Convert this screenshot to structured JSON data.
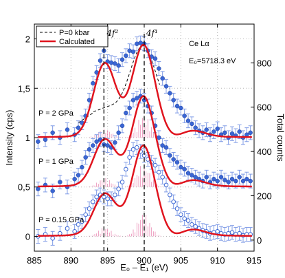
{
  "chart_data": {
    "type": "scatter",
    "xlabel": "E₀ – E₁ (eV)",
    "ylabel": "Intensity (cps)",
    "y2label": "Total counts",
    "xlim": [
      885,
      915
    ],
    "ylim": [
      -0.15,
      2.15
    ],
    "y2lim": [
      -50,
      975
    ],
    "xticks": [
      "885",
      "890",
      "895",
      "900",
      "905",
      "910",
      "915"
    ],
    "yticks": [
      "0",
      "0,5",
      "1",
      "1,5",
      "2"
    ],
    "y2ticks": [
      "0",
      "200",
      "400",
      "600",
      "800"
    ],
    "grid": true,
    "legend": {
      "position": "top-left",
      "entries": [
        "P=0 kbar",
        "Calculated"
      ]
    },
    "annotations": {
      "element": "Ce Lα",
      "incident_energy": "E₀=5718.3 eV",
      "peak_f2": "4f²",
      "peak_f1": "4f¹",
      "label_2gpa": "P = 2 GPa",
      "label_1gpa": "P = 1 GPa",
      "label_015gpa": "P = 0.15 GPa"
    },
    "vlines": [
      894.5,
      900.0
    ],
    "series": [
      {
        "name": "P = 2 GPa",
        "offset": 1.0,
        "marker": "filled",
        "x": [
          885.5,
          886.5,
          887.5,
          888.5,
          889.5,
          890.5,
          891.0,
          891.5,
          892.0,
          892.5,
          893.0,
          893.5,
          894.0,
          894.5,
          895.0,
          895.5,
          896.0,
          896.5,
          897.0,
          897.5,
          898.0,
          898.5,
          899.0,
          899.5,
          900.0,
          900.5,
          901.0,
          901.5,
          902.0,
          902.5,
          903.0,
          903.5,
          904.0,
          904.5,
          905.0,
          905.5,
          906.0,
          906.5,
          907.0,
          907.5,
          908.0,
          908.5,
          909.0,
          909.5,
          910.0,
          910.5,
          911.0,
          911.5,
          912.0,
          912.5,
          913.0,
          913.5,
          914.0,
          914.5
        ],
        "y": [
          0.96,
          0.98,
          1.05,
          1.0,
          1.08,
          1.03,
          1.1,
          1.15,
          1.22,
          1.38,
          1.55,
          1.66,
          1.78,
          1.88,
          1.77,
          1.76,
          1.75,
          1.73,
          1.79,
          1.83,
          1.88,
          1.87,
          1.95,
          1.96,
          1.95,
          1.88,
          1.82,
          1.8,
          1.7,
          1.6,
          1.52,
          1.45,
          1.38,
          1.32,
          1.3,
          1.22,
          1.17,
          1.14,
          1.1,
          1.07,
          1.05,
          1.08,
          1.03,
          1.06,
          1.09,
          1.03,
          1.05,
          1.0,
          1.04,
          1.02,
          1.06,
          1.0,
          1.03,
          1.05
        ],
        "err": 0.07
      },
      {
        "name": "P = 1 GPa",
        "offset": 0.5,
        "marker": "filled",
        "x": [
          885.5,
          886.5,
          887.5,
          888.5,
          889.5,
          890.5,
          891.0,
          891.5,
          892.0,
          892.5,
          893.0,
          893.5,
          894.0,
          894.5,
          895.0,
          895.5,
          896.0,
          896.5,
          897.0,
          897.5,
          898.0,
          898.5,
          899.0,
          899.5,
          900.0,
          900.5,
          901.0,
          901.5,
          902.0,
          902.5,
          903.0,
          903.5,
          904.0,
          904.5,
          905.0,
          905.5,
          906.0,
          906.5,
          907.0,
          907.5,
          908.0,
          908.5,
          909.0,
          909.5,
          910.0,
          910.5,
          911.0,
          911.5,
          912.0,
          912.5,
          913.0,
          913.5,
          914.0,
          914.5
        ],
        "y": [
          0.48,
          0.52,
          0.46,
          0.55,
          0.5,
          0.58,
          0.62,
          0.7,
          0.8,
          0.88,
          0.92,
          0.96,
          0.98,
          0.93,
          0.92,
          0.9,
          0.95,
          1.05,
          1.12,
          1.25,
          1.3,
          1.38,
          1.4,
          1.42,
          1.38,
          1.32,
          1.25,
          1.12,
          1.0,
          0.92,
          0.9,
          0.82,
          0.78,
          0.75,
          0.7,
          0.68,
          0.64,
          0.62,
          0.6,
          0.58,
          0.56,
          0.6,
          0.55,
          0.58,
          0.56,
          0.6,
          0.57,
          0.55,
          0.58,
          0.56,
          0.6,
          0.56,
          0.58,
          0.56
        ],
        "err": 0.07
      },
      {
        "name": "P = 0.15 GPa",
        "offset": 0.0,
        "marker": "open",
        "x": [
          885.5,
          886.5,
          887.5,
          888.5,
          889.5,
          890.5,
          891.0,
          891.5,
          892.0,
          892.5,
          893.0,
          893.5,
          894.0,
          894.5,
          895.0,
          895.5,
          896.0,
          896.5,
          897.0,
          897.5,
          898.0,
          898.5,
          899.0,
          899.5,
          900.0,
          900.5,
          901.0,
          901.5,
          902.0,
          902.5,
          903.0,
          903.5,
          904.0,
          904.5,
          905.0,
          905.5,
          906.0,
          906.5,
          907.0,
          907.5,
          908.0,
          908.5,
          909.0,
          909.5,
          910.0,
          910.5,
          911.0,
          911.5,
          912.0,
          912.5,
          913.0,
          913.5,
          914.0,
          914.5
        ],
        "y": [
          0.0,
          0.02,
          -0.02,
          0.03,
          0.08,
          0.05,
          0.12,
          0.15,
          0.22,
          0.28,
          0.35,
          0.4,
          0.42,
          0.4,
          0.38,
          0.38,
          0.42,
          0.48,
          0.55,
          0.68,
          0.8,
          0.88,
          0.9,
          0.86,
          0.82,
          0.78,
          0.75,
          0.72,
          0.65,
          0.6,
          0.52,
          0.42,
          0.35,
          0.28,
          0.22,
          0.18,
          0.16,
          0.12,
          0.1,
          0.08,
          0.06,
          0.05,
          0.03,
          0.04,
          0.05,
          0.03,
          0.02,
          0.03,
          0.04,
          0.02,
          0.03,
          0.01,
          0.02,
          0.02
        ],
        "err": 0.07
      }
    ],
    "calculated": [
      {
        "offset": 1.0,
        "f2_amp": 0.72,
        "f1_amp": 0.94,
        "f2_center": 894.6,
        "f1_center": 899.9
      },
      {
        "offset": 0.5,
        "f2_amp": 0.45,
        "f1_amp": 0.92,
        "f2_center": 894.6,
        "f1_center": 899.9
      },
      {
        "offset": 0.0,
        "f2_amp": 0.4,
        "f1_amp": 0.92,
        "f2_center": 894.6,
        "f1_center": 899.9
      }
    ],
    "colors": {
      "data": "#3a66d4",
      "errorbar": "#7f9be6",
      "calculated": "#e0141e",
      "sticks": "#e46aa0",
      "reference": "#000000"
    }
  }
}
